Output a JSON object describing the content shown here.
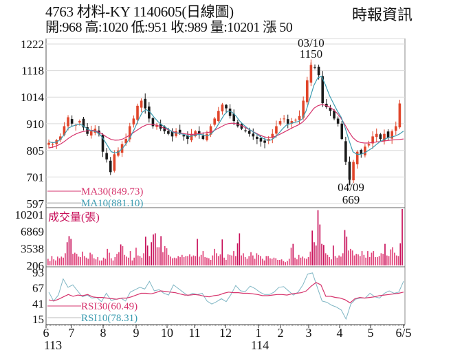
{
  "header": {
    "title": "4763  材料-KY 1140605(日線圖)",
    "quote": "開:968 高:1020 低:951 收:989 量:10201 漲 50",
    "source": "時報資訊"
  },
  "colors": {
    "up": "#e0452a",
    "down": "#1a1a1a",
    "ma30": "#d6336c",
    "ma10": "#3b9bb0",
    "volume": "#e0437a",
    "volume_dark": "#c8105a",
    "rsi30": "#d6336c",
    "rsi10": "#7fb6c4",
    "grid": "#d9d9d9",
    "axis": "#555555"
  },
  "chart_data": [
    {
      "type": "candlestick",
      "title": "4763 材料-KY 1140605(日線圖)",
      "panel": "price",
      "y_ticks": [
        1222,
        1118,
        1014,
        910,
        805,
        701,
        597
      ],
      "ylim": [
        597,
        1222
      ],
      "annotations": [
        {
          "label": "03/10",
          "value": "1150",
          "type": "high"
        },
        {
          "label": "04/09",
          "value": "669",
          "type": "low"
        }
      ],
      "legend": [
        {
          "name": "MA30",
          "value": "MA30(849.73)"
        },
        {
          "name": "MA10",
          "value": "MA10(881.10)"
        }
      ],
      "last_bar": {
        "open": 968,
        "high": 1020,
        "low": 951,
        "close": 989,
        "volume": 10201,
        "change": 50
      },
      "close_path": [
        835,
        830,
        845,
        860,
        900,
        935,
        910,
        905,
        920,
        895,
        870,
        880,
        890,
        870,
        800,
        770,
        720,
        790,
        805,
        830,
        850,
        900,
        930,
        980,
        1000,
        970,
        930,
        900,
        905,
        890,
        880,
        870,
        860,
        880,
        875,
        860,
        850,
        870,
        880,
        870,
        850,
        870,
        900,
        930,
        960,
        985,
        970,
        940,
        920,
        900,
        890,
        880,
        870,
        860,
        850,
        840,
        835,
        850,
        870,
        900,
        920,
        930,
        910,
        920,
        925,
        940,
        1000,
        1080,
        1140,
        1130,
        1100,
        990,
        975,
        960,
        930,
        910,
        850,
        760,
        690,
        760,
        800,
        790,
        820,
        830,
        860,
        870,
        850,
        870,
        855,
        880,
        900,
        989
      ],
      "ma10_path": [
        840,
        835,
        838,
        848,
        868,
        892,
        900,
        905,
        908,
        900,
        888,
        882,
        880,
        870,
        850,
        825,
        800,
        795,
        800,
        815,
        835,
        860,
        890,
        925,
        955,
        965,
        955,
        935,
        918,
        905,
        895,
        885,
        875,
        873,
        870,
        866,
        860,
        862,
        867,
        868,
        864,
        864,
        875,
        895,
        920,
        945,
        960,
        955,
        940,
        920,
        905,
        892,
        882,
        872,
        862,
        852,
        845,
        846,
        856,
        872,
        890,
        905,
        910,
        915,
        918,
        928,
        960,
        1010,
        1060,
        1090,
        1095,
        1060,
        1020,
        990,
        960,
        935,
        895,
        845,
        800,
        790,
        790,
        795,
        805,
        815,
        828,
        840,
        848,
        855,
        858,
        862,
        870,
        881
      ],
      "ma30_path": [
        815,
        818,
        823,
        830,
        840,
        852,
        862,
        870,
        876,
        880,
        882,
        884,
        882,
        876,
        866,
        856,
        848,
        845,
        846,
        850,
        858,
        868,
        878,
        888,
        898,
        905,
        908,
        906,
        902,
        896,
        890,
        884,
        878,
        874,
        872,
        870,
        868,
        868,
        870,
        872,
        874,
        876,
        880,
        888,
        896,
        904,
        910,
        912,
        910,
        905,
        898,
        890,
        882,
        874,
        866,
        860,
        856,
        856,
        860,
        866,
        874,
        882,
        890,
        898,
        905,
        915,
        930,
        950,
        970,
        980,
        985,
        982,
        975,
        965,
        950,
        930,
        905,
        878,
        855,
        842,
        836,
        834,
        834,
        836,
        838,
        840,
        842,
        844,
        846,
        847,
        848,
        850
      ]
    },
    {
      "type": "bar",
      "panel": "volume",
      "title": "成交量(張)",
      "y_ticks": [
        10201,
        6869,
        3538,
        206
      ],
      "ylim": [
        206,
        10201
      ],
      "values": [
        1200,
        800,
        1700,
        1100,
        900,
        1600,
        1300,
        1600,
        1400,
        2200,
        4200,
        5300,
        4800,
        2100,
        2300,
        2100,
        1600,
        1500,
        2500,
        1700,
        1400,
        1200,
        2300,
        2000,
        1300,
        1100,
        1500,
        900,
        900,
        1400,
        1200,
        3000,
        2300,
        1300,
        900,
        1500,
        2100,
        2400,
        3800,
        3500,
        1900,
        1600,
        1400,
        2600,
        900,
        1400,
        3200,
        1800,
        1700,
        1400,
        2200,
        5200,
        3600,
        1700,
        4200,
        5600,
        5800,
        3300,
        3300,
        5300,
        2400,
        3500,
        3100,
        1900,
        1600,
        1300,
        1400,
        1300,
        1700,
        1500,
        1900,
        1500,
        1700,
        1700,
        2000,
        1600,
        1800,
        1700,
        4800,
        1600,
        1900,
        2600,
        1500,
        1400,
        1300,
        1000,
        1800,
        3000,
        2200,
        1700,
        2000,
        4700,
        1400,
        1000,
        2000,
        1900,
        1800,
        2600,
        1700,
        4000,
        5800,
        1800,
        2200,
        1500,
        1200,
        1700,
        2400,
        1800,
        1200,
        2200,
        1900,
        1700,
        1200,
        900,
        1700,
        1700,
        1300,
        1200,
        1400,
        1300,
        1000,
        1000,
        1100,
        800,
        600,
        800,
        1200,
        3200,
        3900,
        1400,
        1100,
        1900,
        1400,
        1600,
        1300,
        1200,
        1500,
        2500,
        6300,
        4200,
        3600,
        10000,
        7400,
        3900,
        3700,
        2200,
        1900,
        1500,
        1100,
        3600,
        1700,
        1400,
        1800,
        1600,
        2200,
        6400,
        5200,
        2700,
        3000,
        2700,
        1800,
        2100,
        2000,
        1700,
        2600,
        1900,
        1400,
        2600,
        1500,
        2300,
        2600,
        1500,
        1500,
        1700,
        2200,
        2100,
        3900,
        1800,
        1700,
        2900,
        3300,
        2300,
        1800,
        1700,
        4000,
        10201
      ]
    },
    {
      "type": "line",
      "panel": "rsi",
      "y_ticks": [
        93,
        67,
        41,
        15
      ],
      "ylim": [
        15,
        93
      ],
      "legend": [
        {
          "name": "RSI30",
          "value": "RSI30(60.49)"
        },
        {
          "name": "RSI10",
          "value": "RSI10(78.31)"
        }
      ],
      "series": [
        {
          "name": "RSI30",
          "values": [
            47,
            45,
            48,
            52,
            56,
            53,
            55,
            54,
            56,
            52,
            51,
            51,
            50,
            49,
            48,
            50,
            50,
            52,
            55,
            58,
            58,
            57,
            59,
            62,
            61,
            60,
            59,
            57,
            55,
            55,
            56,
            55,
            53,
            52,
            54,
            55,
            58,
            60,
            59,
            59,
            58,
            58,
            57,
            56,
            54,
            54,
            55,
            56,
            56,
            55,
            57,
            58,
            59,
            62,
            70,
            76,
            72,
            53,
            53,
            51,
            50,
            47,
            42,
            49,
            51,
            50,
            51,
            52,
            54,
            55,
            56,
            57,
            58,
            60
          ]
        },
        {
          "name": "RSI10",
          "values": [
            60,
            45,
            55,
            82,
            68,
            72,
            62,
            52,
            55,
            50,
            51,
            44,
            58,
            46,
            48,
            50,
            45,
            60,
            64,
            68,
            65,
            78,
            62,
            64,
            58,
            55,
            72,
            66,
            60,
            54,
            58,
            56,
            58,
            45,
            40,
            44,
            49,
            44,
            56,
            71,
            62,
            61,
            70,
            66,
            60,
            56,
            56,
            60,
            68,
            69,
            62,
            55,
            60,
            72,
            90,
            92,
            68,
            45,
            43,
            38,
            35,
            30,
            15,
            40,
            48,
            50,
            50,
            58,
            52,
            50,
            58,
            62,
            58,
            60,
            78
          ]
        }
      ]
    }
  ],
  "x_axis": {
    "labels": [
      "6",
      "7",
      "8",
      "9",
      "10",
      "11",
      "12",
      "1",
      "2",
      "3",
      "4",
      "5",
      "6/5"
    ],
    "year_labels": [
      {
        "label": "113",
        "under": "6"
      },
      {
        "label": "114",
        "under": "1"
      }
    ]
  }
}
